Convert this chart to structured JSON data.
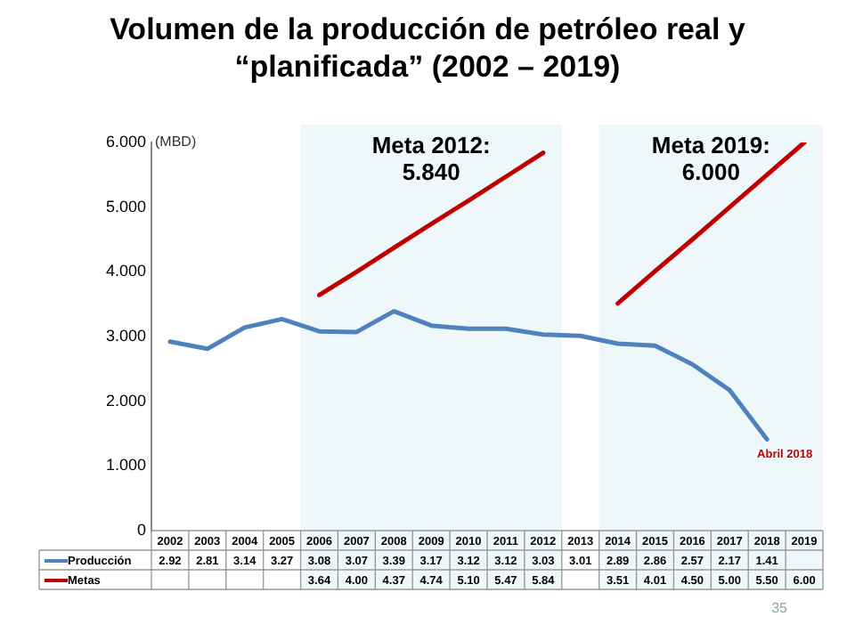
{
  "chart_data": {
    "type": "line",
    "title": "Volumen de la producción de petróleo real y “planificada” (2002 – 2019)",
    "ylabel": "(MBD)",
    "categories": [
      "2002",
      "2003",
      "2004",
      "2005",
      "2006",
      "2007",
      "2008",
      "2009",
      "2010",
      "2011",
      "2012",
      "2013",
      "2014",
      "2015",
      "2016",
      "2017",
      "2018",
      "2019"
    ],
    "series": [
      {
        "name": "Producción",
        "color": "#4f81bd",
        "values": [
          2.92,
          2.81,
          3.14,
          3.27,
          3.08,
          3.07,
          3.39,
          3.17,
          3.12,
          3.12,
          3.03,
          3.01,
          2.89,
          2.86,
          2.57,
          2.17,
          1.41,
          null
        ],
        "value_labels": [
          "2.92",
          "2.81",
          "3.14",
          "3.27",
          "3.08",
          "3.07",
          "3.39",
          "3.17",
          "3.12",
          "3.12",
          "3.03",
          "3.01",
          "2.89",
          "2.86",
          "2.57",
          "2.17",
          "1.41",
          null
        ]
      },
      {
        "name": "Metas",
        "color": "#c00000",
        "values": [
          null,
          null,
          null,
          null,
          3.64,
          4.0,
          4.37,
          4.74,
          5.1,
          5.47,
          5.84,
          null,
          3.51,
          4.01,
          4.5,
          5.0,
          5.5,
          6.0
        ],
        "value_labels": [
          null,
          null,
          null,
          null,
          "3.64",
          "4.00",
          "4.37",
          "4.74",
          "5.10",
          "5.47",
          "5.84",
          null,
          "3.51",
          "4.01",
          "4.50",
          "5.00",
          "5.50",
          "6.00"
        ]
      }
    ],
    "ylim": [
      0,
      6
    ],
    "yticks": [
      {
        "value": 0,
        "label": "0"
      },
      {
        "value": 1,
        "label": "1.000"
      },
      {
        "value": 2,
        "label": "2.000"
      },
      {
        "value": 3,
        "label": "3.000"
      },
      {
        "value": 4,
        "label": "4.000"
      },
      {
        "value": 5,
        "label": "5.000"
      },
      {
        "value": 6,
        "label": "6.000"
      }
    ],
    "bands": [
      {
        "axis": "x",
        "from": "2006",
        "to": "2012",
        "label": "Meta 2012:\n5.840",
        "color": "#eef7fa"
      },
      {
        "axis": "x",
        "from": "2014",
        "to": "2019",
        "label": "Meta 2019:\n6.000",
        "color": "#eef7fa"
      }
    ],
    "annotations": [
      {
        "text": "Abril 2018",
        "x": "2018",
        "y": 1.41
      },
      "35"
    ],
    "legend": "bottom",
    "line_style": "solid",
    "marker": "none"
  }
}
